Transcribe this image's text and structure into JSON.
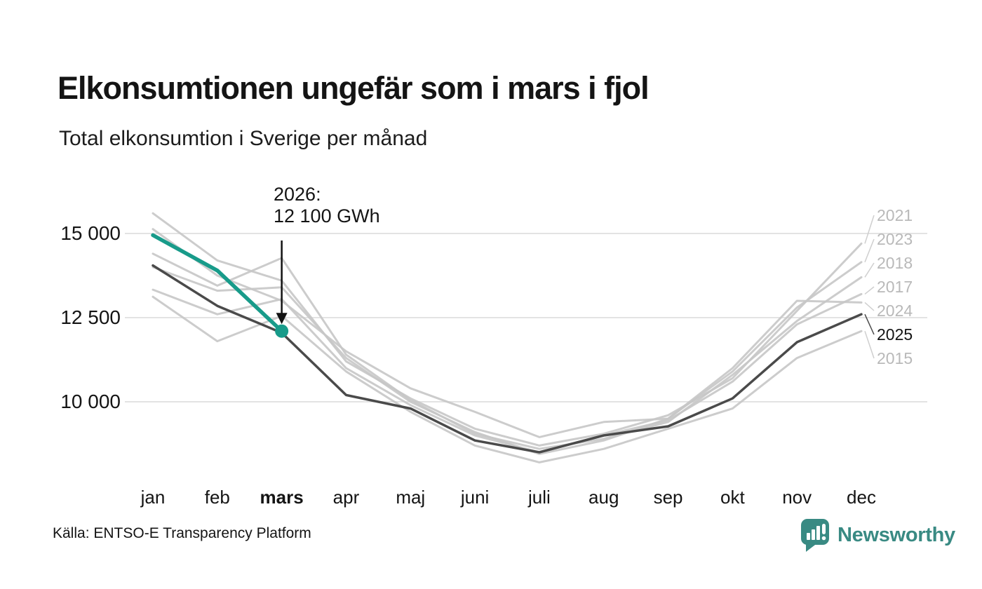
{
  "header": {
    "title": "Elkonsumtionen ungefär som i mars i fjol",
    "subtitle": "Total elkonsumtion i Sverige per månad"
  },
  "annotation": {
    "line1": "2026:",
    "line2": "12 100 GWh"
  },
  "source": {
    "label": "Källa: ENTSO-E Transparency Platform"
  },
  "logo": {
    "text": "Newsworthy",
    "color": "#398a83"
  },
  "colors": {
    "accent": "#189b8a",
    "current_year_line": "#4a4a4a",
    "history_line": "#c7c7c7",
    "gridline": "#e3e3e3",
    "year_label_gray": "#b9b9b9",
    "text": "#141414"
  },
  "chart_data": {
    "type": "line",
    "title": "Total elkonsumtion i Sverige per månad",
    "xlabel": "",
    "ylabel": "GWh",
    "unit": "GWh",
    "categories": [
      "jan",
      "feb",
      "mars",
      "apr",
      "maj",
      "juni",
      "juli",
      "aug",
      "sep",
      "okt",
      "nov",
      "dec"
    ],
    "bold_category": "mars",
    "ytick_values": [
      15000,
      12500,
      10000
    ],
    "ytick_labels": [
      "15 000",
      "12 500",
      "10 000"
    ],
    "ylim": [
      8100,
      15700
    ],
    "grid": true,
    "legend_position": "right-end-labels",
    "highlight": {
      "series": "2026",
      "category": "mars",
      "value": 12100
    },
    "series": [
      {
        "name": "2015",
        "role": "history",
        "labeled": true,
        "values": [
          13120,
          11800,
          12550,
          10900,
          9700,
          8700,
          8200,
          8600,
          9200,
          9800,
          11300,
          12100
        ]
      },
      {
        "name": "2017",
        "role": "history",
        "labeled": true,
        "values": [
          13330,
          12600,
          13050,
          11000,
          9900,
          9000,
          8500,
          9000,
          9450,
          10600,
          12300,
          13200
        ]
      },
      {
        "name": "2018",
        "role": "history",
        "labeled": true,
        "values": [
          14400,
          13450,
          14270,
          11400,
          10050,
          9050,
          8600,
          8900,
          9400,
          10800,
          12400,
          13700
        ]
      },
      {
        "name": "2021",
        "role": "history",
        "labeled": true,
        "values": [
          15600,
          14200,
          13600,
          11200,
          10100,
          9200,
          8700,
          9050,
          9600,
          10700,
          12700,
          14700
        ]
      },
      {
        "name": "2023",
        "role": "history",
        "labeled": true,
        "values": [
          14000,
          13300,
          13400,
          11300,
          10000,
          9100,
          8450,
          8850,
          9500,
          10900,
          12800,
          14150
        ]
      },
      {
        "name": "2024",
        "role": "history",
        "labeled": true,
        "values": [
          15130,
          13750,
          13000,
          11500,
          10400,
          9700,
          8950,
          9400,
          9500,
          11000,
          13000,
          12950
        ]
      },
      {
        "name": "2025",
        "role": "current",
        "labeled": true,
        "values": [
          14050,
          12850,
          12050,
          10200,
          9800,
          8850,
          8500,
          9000,
          9270,
          10100,
          11770,
          12600
        ]
      },
      {
        "name": "2026",
        "role": "accent",
        "labeled": false,
        "marker_end": true,
        "values": [
          14950,
          13900,
          12100,
          null,
          null,
          null,
          null,
          null,
          null,
          null,
          null,
          null
        ]
      }
    ]
  }
}
